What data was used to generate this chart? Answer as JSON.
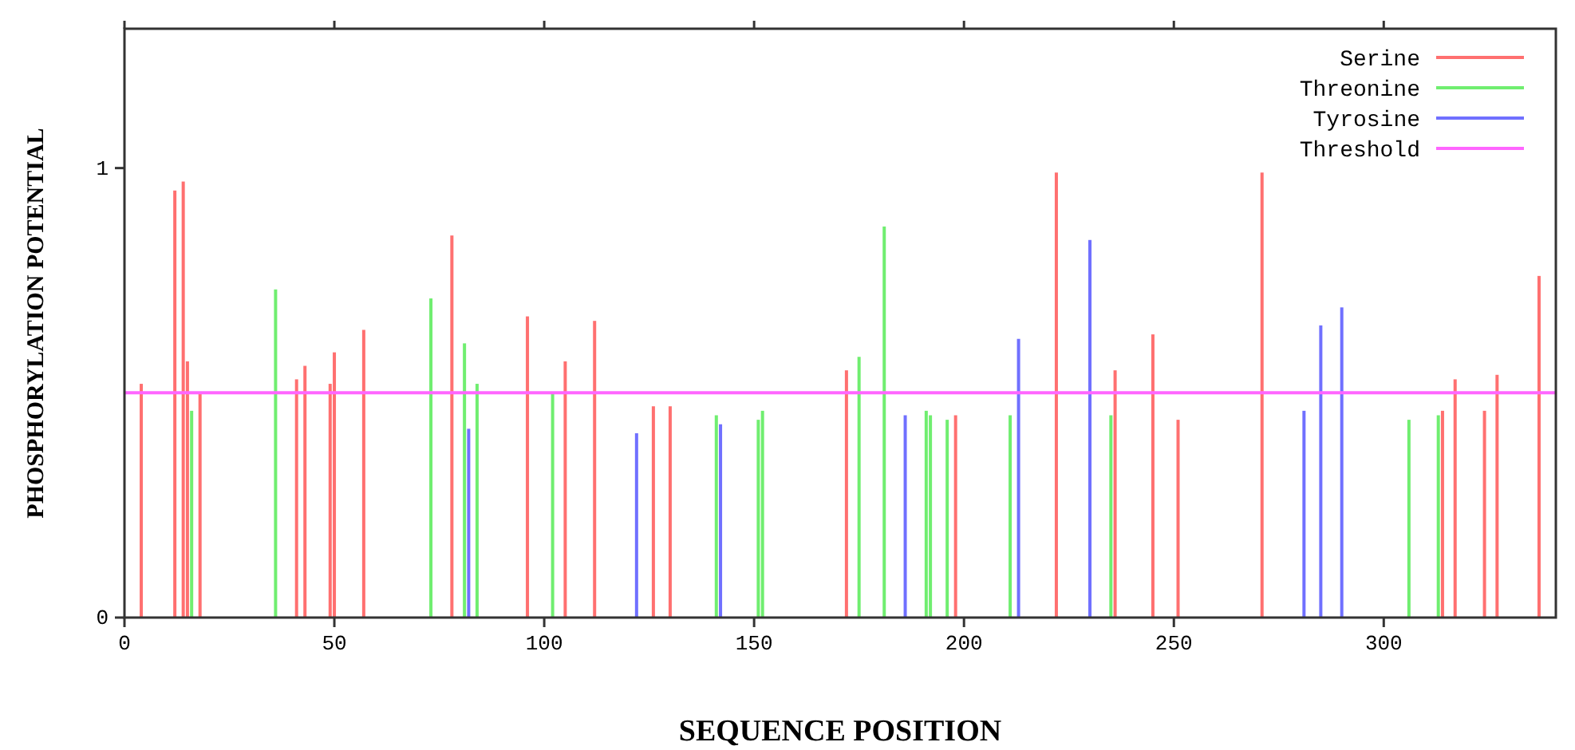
{
  "chart_data": {
    "type": "bar",
    "xlabel": "SEQUENCE POSITION",
    "ylabel": "PHOSPHORYLATION POTENTIAL",
    "xlim": [
      0,
      341
    ],
    "xticks": [
      0,
      50,
      100,
      150,
      200,
      250,
      300
    ],
    "ylim": [
      0,
      1.31
    ],
    "yticks": [
      0,
      1
    ],
    "legend": "top right",
    "grid": false,
    "series": [
      {
        "name": "Serine",
        "color": "#ff7070",
        "x": [
          4,
          12,
          14,
          15,
          18,
          41,
          43,
          49,
          50,
          57,
          78,
          96,
          105,
          112,
          126,
          130,
          172,
          198,
          222,
          236,
          245,
          251,
          271,
          314,
          317,
          324,
          327,
          337
        ],
        "values": [
          0.52,
          0.95,
          0.97,
          0.57,
          0.5,
          0.53,
          0.56,
          0.52,
          0.59,
          0.64,
          0.85,
          0.67,
          0.57,
          0.66,
          0.47,
          0.47,
          0.55,
          0.45,
          0.99,
          0.55,
          0.63,
          0.44,
          0.99,
          0.46,
          0.53,
          0.46,
          0.54,
          0.76
        ]
      },
      {
        "name": "Threonine",
        "color": "#70ee70",
        "x": [
          16,
          36,
          73,
          81,
          84,
          102,
          141,
          151,
          152,
          175,
          181,
          191,
          192,
          196,
          211,
          235,
          306,
          313
        ],
        "values": [
          0.46,
          0.73,
          0.71,
          0.61,
          0.52,
          0.5,
          0.45,
          0.44,
          0.46,
          0.58,
          0.87,
          0.46,
          0.45,
          0.44,
          0.45,
          0.45,
          0.44,
          0.45
        ]
      },
      {
        "name": "Tyrosine",
        "color": "#7070ff",
        "x": [
          82,
          122,
          142,
          186,
          213,
          230,
          281,
          285,
          290
        ],
        "values": [
          0.42,
          0.41,
          0.43,
          0.45,
          0.62,
          0.84,
          0.46,
          0.65,
          0.69
        ]
      }
    ],
    "ref_lines": [
      {
        "axis": "y",
        "value": 0.5,
        "label": "Threshold",
        "color": "#ff66ff"
      }
    ]
  }
}
